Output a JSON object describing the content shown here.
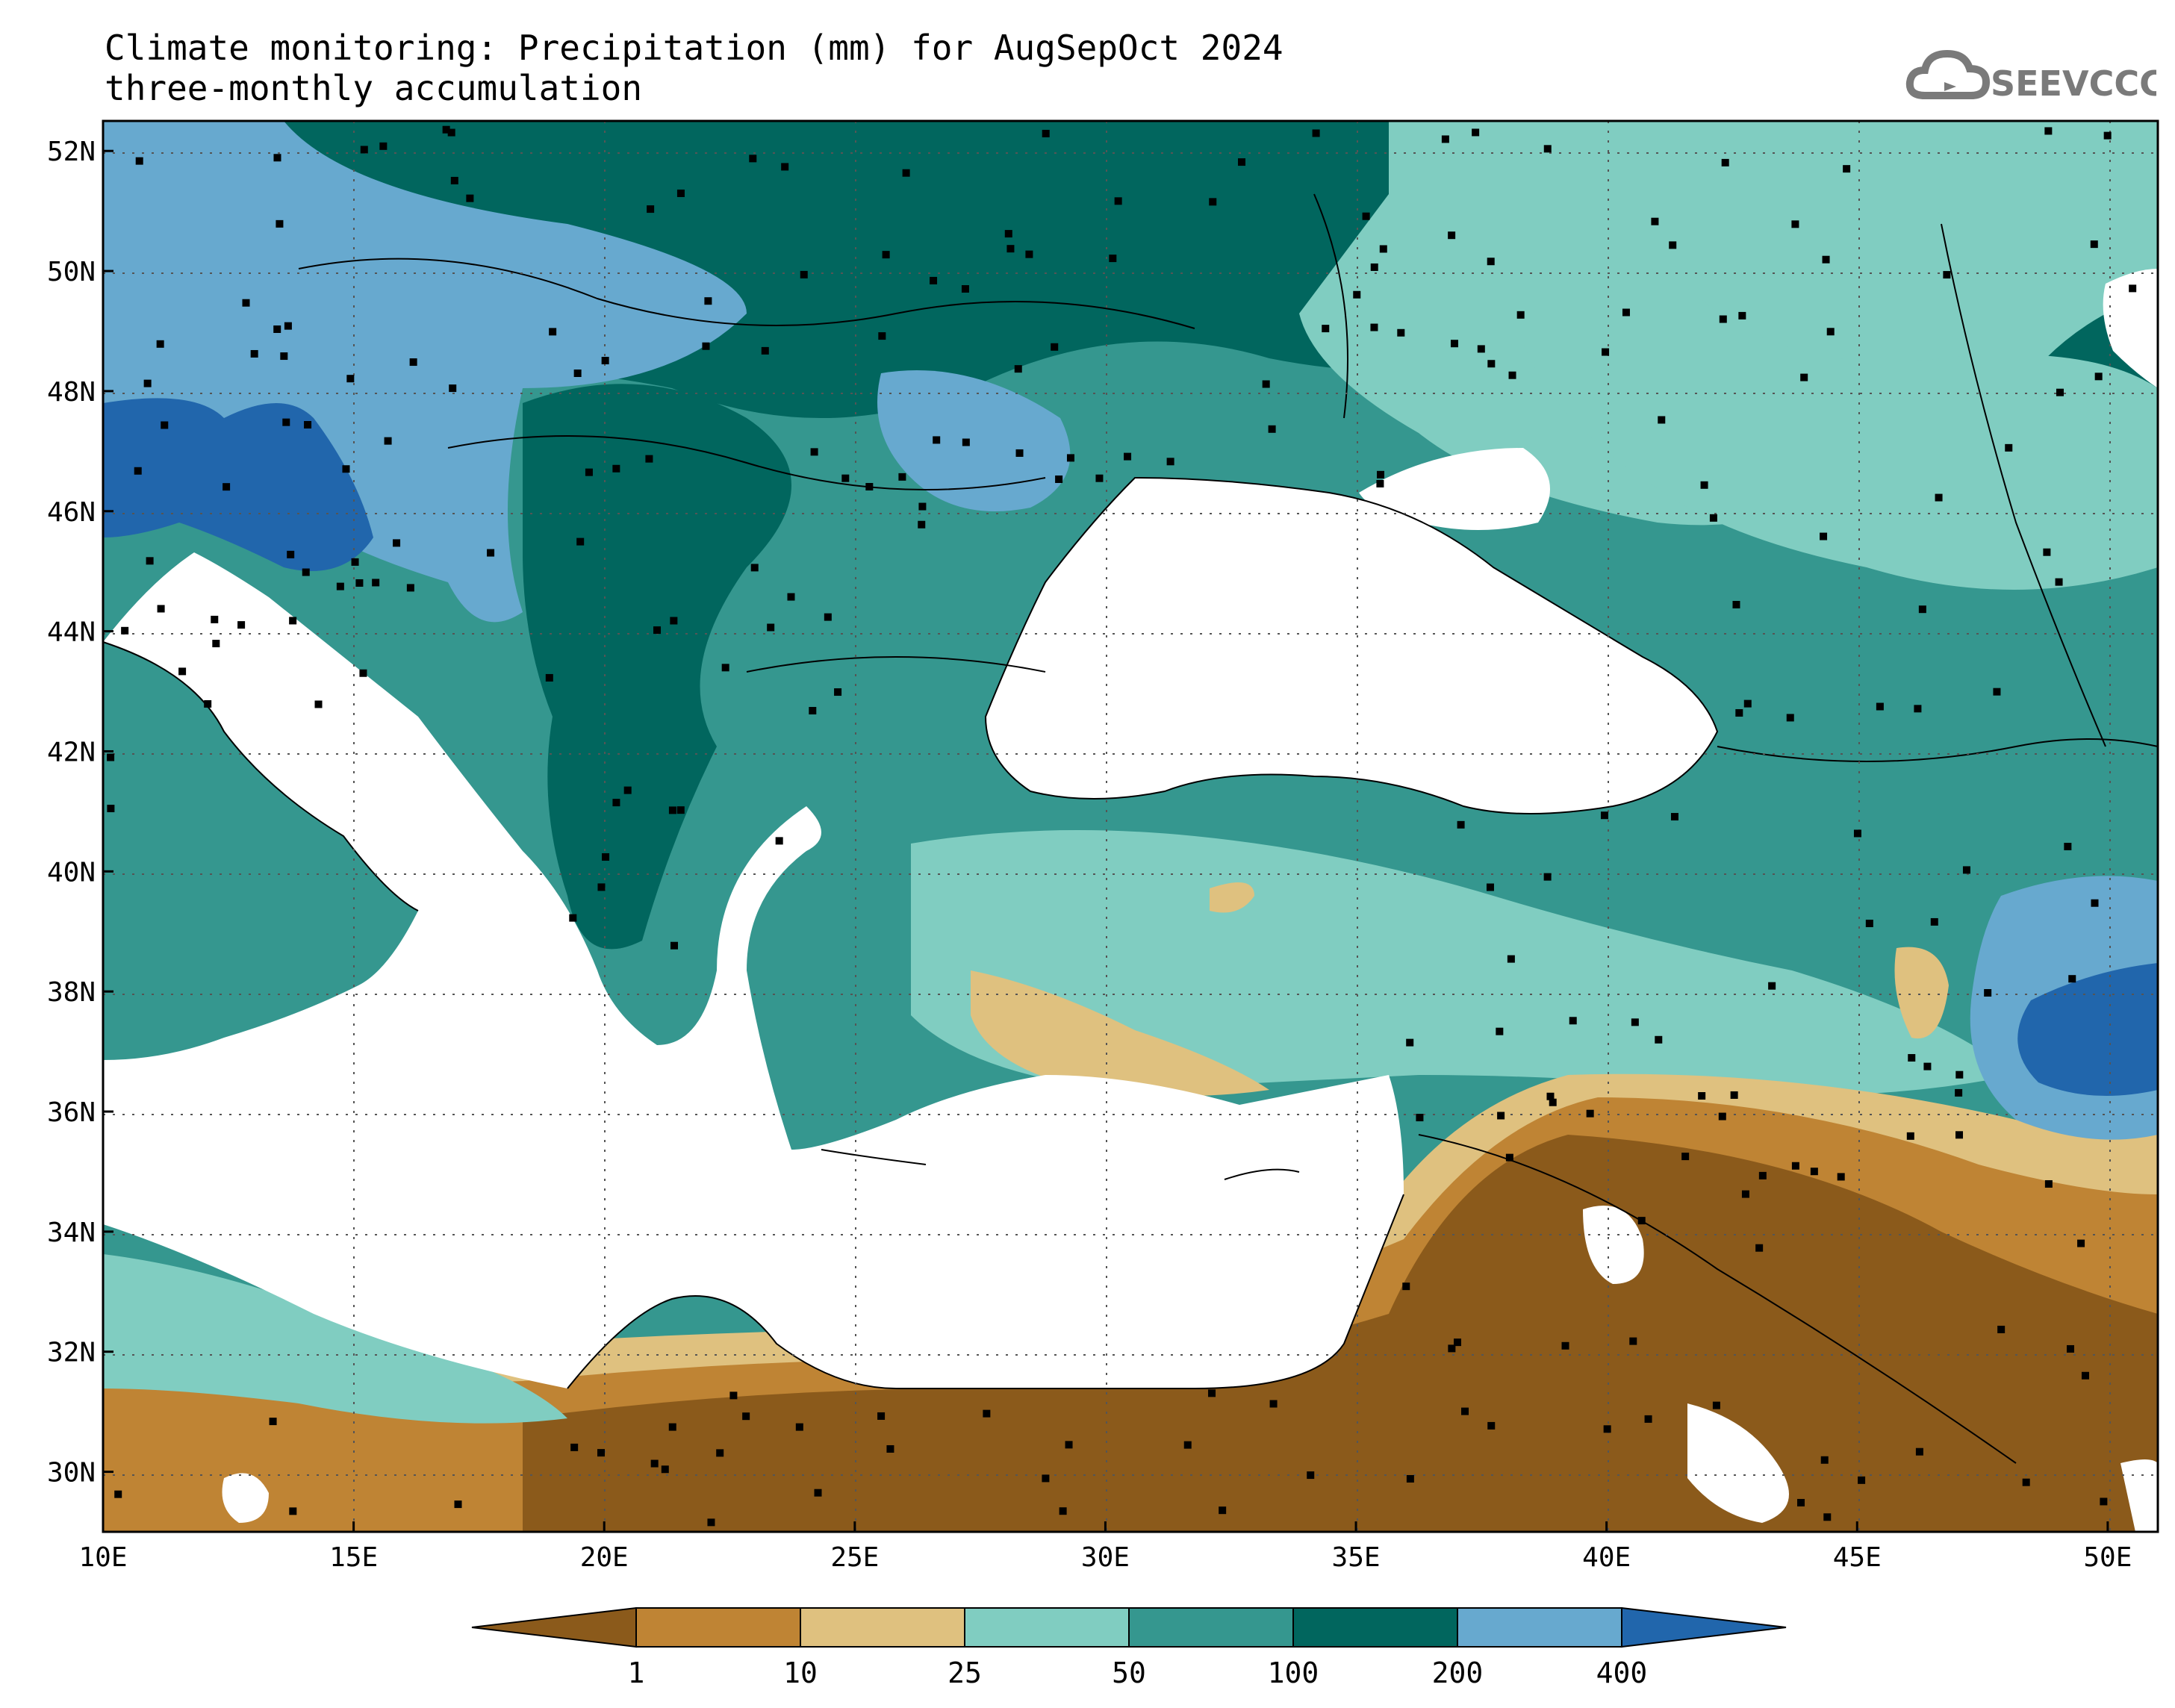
{
  "title": {
    "line1": "Climate monitoring: Precipitation (mm) for AugSepOct 2024",
    "line2": "three-monthly accumulation"
  },
  "logo": {
    "text": "SEEVCCC",
    "icon": "cloud-icon",
    "color": "#7a7a7a"
  },
  "map": {
    "lon_range": [
      10,
      51
    ],
    "lat_range": [
      29,
      52.5
    ],
    "lon_ticks": [
      "10E",
      "15E",
      "20E",
      "25E",
      "30E",
      "35E",
      "40E",
      "45E",
      "50E"
    ],
    "lat_ticks": [
      "30N",
      "32N",
      "34N",
      "36N",
      "38N",
      "40N",
      "42N",
      "44N",
      "46N",
      "48N",
      "50N",
      "52N"
    ],
    "grid": "dotted",
    "station_markers": "black squares"
  },
  "colorbar": {
    "labels": [
      "1",
      "10",
      "25",
      "50",
      "100",
      "200",
      "400"
    ],
    "colors": [
      "#8b5a1b",
      "#bf8434",
      "#dfc17f",
      "#80cdc1",
      "#35978f",
      "#01665e",
      "#67a9cf",
      "#2166ac"
    ]
  }
}
